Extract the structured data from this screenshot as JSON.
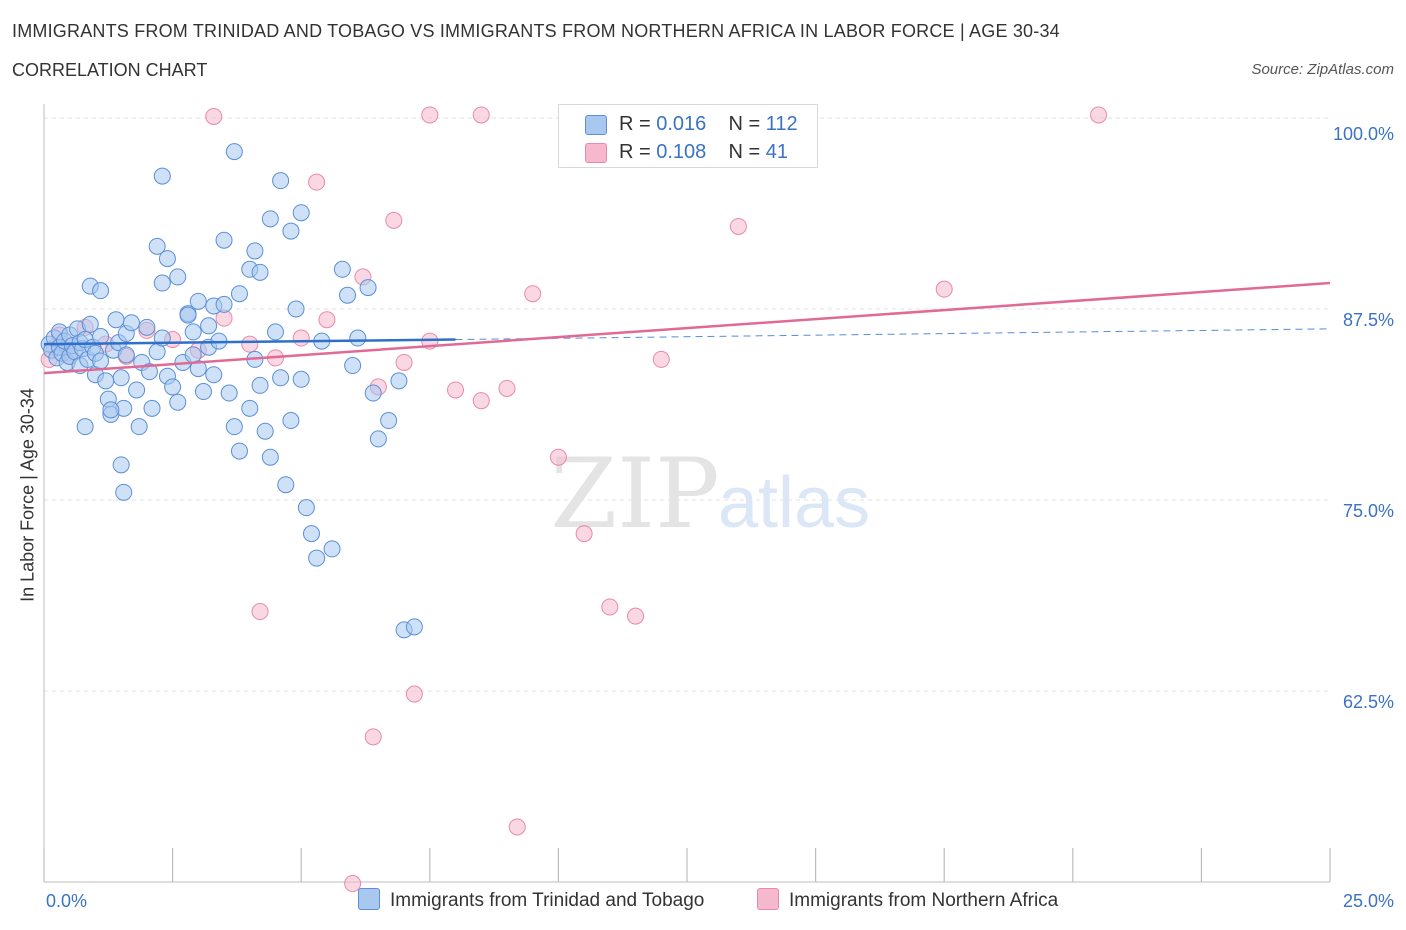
{
  "header": {
    "title": "IMMIGRANTS FROM TRINIDAD AND TOBAGO VS IMMIGRANTS FROM NORTHERN AFRICA IN LABOR FORCE | AGE 30-34",
    "subtitle": "CORRELATION CHART",
    "source": "Source: ZipAtlas.com"
  },
  "watermark": {
    "zip": "ZIP",
    "atlas": "atlas"
  },
  "legend": {
    "r_label": "R =",
    "n_label": "N =",
    "rows": [
      {
        "r": "0.016",
        "n": "112",
        "color": "#a8c8f0"
      },
      {
        "r": "0.108",
        "n": "41",
        "color": "#f6b8cc"
      }
    ]
  },
  "colors": {
    "blue_fill": "#a8c8f0",
    "blue_stroke": "#5b8fd6",
    "blue_line": "#2e6fc9",
    "pink_fill": "#f6b8cc",
    "pink_stroke": "#e98aa8",
    "pink_line": "#e06a95",
    "tick_text": "#3a72c4"
  },
  "chart_data": {
    "type": "scatter",
    "xlabel": "",
    "ylabel": "In Labor Force | Age 30-34",
    "xlim": [
      0,
      25
    ],
    "ylim": [
      50,
      100
    ],
    "x_tick_labels": [
      "0.0%",
      "25.0%"
    ],
    "y_ticks": [
      {
        "value": 100,
        "label": "100.0%"
      },
      {
        "value": 87.5,
        "label": "87.5%"
      },
      {
        "value": 75,
        "label": "75.0%"
      },
      {
        "value": 62.5,
        "label": "62.5%"
      }
    ],
    "grid": true,
    "series": [
      {
        "name": "Immigrants from Trinidad and Tobago",
        "trend": {
          "x0": 0,
          "y0": 85.2,
          "x1": 8,
          "y1": 85.5,
          "dash_to_x": 25,
          "dash_to_y": 86.2
        },
        "points": [
          [
            0.1,
            85.2
          ],
          [
            0.15,
            84.8
          ],
          [
            0.2,
            85.6
          ],
          [
            0.25,
            84.3
          ],
          [
            0.3,
            85.0
          ],
          [
            0.3,
            86.0
          ],
          [
            0.35,
            84.6
          ],
          [
            0.4,
            85.4
          ],
          [
            0.45,
            84.0
          ],
          [
            0.5,
            85.8
          ],
          [
            0.5,
            84.4
          ],
          [
            0.55,
            85.1
          ],
          [
            0.6,
            84.7
          ],
          [
            0.65,
            86.2
          ],
          [
            0.7,
            85.3
          ],
          [
            0.7,
            83.8
          ],
          [
            0.75,
            84.9
          ],
          [
            0.8,
            85.5
          ],
          [
            0.85,
            84.2
          ],
          [
            0.9,
            86.5
          ],
          [
            0.95,
            85.0
          ],
          [
            1.0,
            84.6
          ],
          [
            1.0,
            83.2
          ],
          [
            1.1,
            85.7
          ],
          [
            1.1,
            84.1
          ],
          [
            1.2,
            82.8
          ],
          [
            1.25,
            81.6
          ],
          [
            1.3,
            80.6
          ],
          [
            1.35,
            84.8
          ],
          [
            1.4,
            86.8
          ],
          [
            1.45,
            85.3
          ],
          [
            1.5,
            83.0
          ],
          [
            1.55,
            81.0
          ],
          [
            1.6,
            85.9
          ],
          [
            1.6,
            84.5
          ],
          [
            1.7,
            86.6
          ],
          [
            1.8,
            82.2
          ],
          [
            1.85,
            79.8
          ],
          [
            1.9,
            84.0
          ],
          [
            2.0,
            86.3
          ],
          [
            2.05,
            83.4
          ],
          [
            2.1,
            81.0
          ],
          [
            2.2,
            84.7
          ],
          [
            2.3,
            85.6
          ],
          [
            2.4,
            83.1
          ],
          [
            2.5,
            82.4
          ],
          [
            2.6,
            81.4
          ],
          [
            2.7,
            84.0
          ],
          [
            2.8,
            87.2
          ],
          [
            2.9,
            86.0
          ],
          [
            3.0,
            83.6
          ],
          [
            3.1,
            82.1
          ],
          [
            3.2,
            85.0
          ],
          [
            3.3,
            87.7
          ],
          [
            0.8,
            79.8
          ],
          [
            1.3,
            80.9
          ],
          [
            1.5,
            77.3
          ],
          [
            1.55,
            75.5
          ],
          [
            0.9,
            89.0
          ],
          [
            1.1,
            88.7
          ],
          [
            2.3,
            89.2
          ],
          [
            2.4,
            90.8
          ],
          [
            2.6,
            89.6
          ],
          [
            2.8,
            87.1
          ],
          [
            2.9,
            84.5
          ],
          [
            3.0,
            88.0
          ],
          [
            3.2,
            86.4
          ],
          [
            3.3,
            83.2
          ],
          [
            3.4,
            85.4
          ],
          [
            3.5,
            87.8
          ],
          [
            3.6,
            82.0
          ],
          [
            3.7,
            79.8
          ],
          [
            3.8,
            78.2
          ],
          [
            4.0,
            81.0
          ],
          [
            4.1,
            84.2
          ],
          [
            4.2,
            82.5
          ],
          [
            4.3,
            79.5
          ],
          [
            4.4,
            77.8
          ],
          [
            4.5,
            86.0
          ],
          [
            4.6,
            83.0
          ],
          [
            4.7,
            76.0
          ],
          [
            4.8,
            80.2
          ],
          [
            4.9,
            87.5
          ],
          [
            5.0,
            82.9
          ],
          [
            5.1,
            74.5
          ],
          [
            5.2,
            72.8
          ],
          [
            5.3,
            71.2
          ],
          [
            5.4,
            85.4
          ],
          [
            5.6,
            71.8
          ],
          [
            5.8,
            90.1
          ],
          [
            5.9,
            88.4
          ],
          [
            6.0,
            83.8
          ],
          [
            6.1,
            85.6
          ],
          [
            6.3,
            88.9
          ],
          [
            6.4,
            82.0
          ],
          [
            6.5,
            79.0
          ],
          [
            6.7,
            80.2
          ],
          [
            6.9,
            82.8
          ],
          [
            7.0,
            66.5
          ],
          [
            7.2,
            66.7
          ],
          [
            3.5,
            92.0
          ],
          [
            3.7,
            97.8
          ],
          [
            3.8,
            88.5
          ],
          [
            4.0,
            90.1
          ],
          [
            4.1,
            91.3
          ],
          [
            4.2,
            89.9
          ],
          [
            4.4,
            93.4
          ],
          [
            4.6,
            95.9
          ],
          [
            4.8,
            92.6
          ],
          [
            5.0,
            93.8
          ],
          [
            2.2,
            91.6
          ],
          [
            2.3,
            96.2
          ]
        ]
      },
      {
        "name": "Immigrants from Northern Africa",
        "trend": {
          "x0": 0,
          "y0": 83.3,
          "x1": 25,
          "y1": 89.2
        },
        "points": [
          [
            0.1,
            84.2
          ],
          [
            0.2,
            85.0
          ],
          [
            0.3,
            85.8
          ],
          [
            0.5,
            84.6
          ],
          [
            0.8,
            86.3
          ],
          [
            1.2,
            85.2
          ],
          [
            1.6,
            84.4
          ],
          [
            2.0,
            86.1
          ],
          [
            2.5,
            85.5
          ],
          [
            3.0,
            84.8
          ],
          [
            3.5,
            86.9
          ],
          [
            4.0,
            85.2
          ],
          [
            4.5,
            84.3
          ],
          [
            5.0,
            85.6
          ],
          [
            5.5,
            86.8
          ],
          [
            6.2,
            89.6
          ],
          [
            6.5,
            82.4
          ],
          [
            7.0,
            84.0
          ],
          [
            7.5,
            85.4
          ],
          [
            8.0,
            82.2
          ],
          [
            8.5,
            81.5
          ],
          [
            9.0,
            82.3
          ],
          [
            9.5,
            88.5
          ],
          [
            10.0,
            77.8
          ],
          [
            10.5,
            72.8
          ],
          [
            11.0,
            68.0
          ],
          [
            11.5,
            67.4
          ],
          [
            12.0,
            84.2
          ],
          [
            13.5,
            92.9
          ],
          [
            17.5,
            88.8
          ],
          [
            20.5,
            100.2
          ],
          [
            5.3,
            95.8
          ],
          [
            6.8,
            93.3
          ],
          [
            7.5,
            100.2
          ],
          [
            8.5,
            100.2
          ],
          [
            7.2,
            62.3
          ],
          [
            9.2,
            53.6
          ],
          [
            6.0,
            49.9
          ],
          [
            4.2,
            67.7
          ],
          [
            6.4,
            59.5
          ],
          [
            3.3,
            100.1
          ]
        ]
      }
    ]
  }
}
